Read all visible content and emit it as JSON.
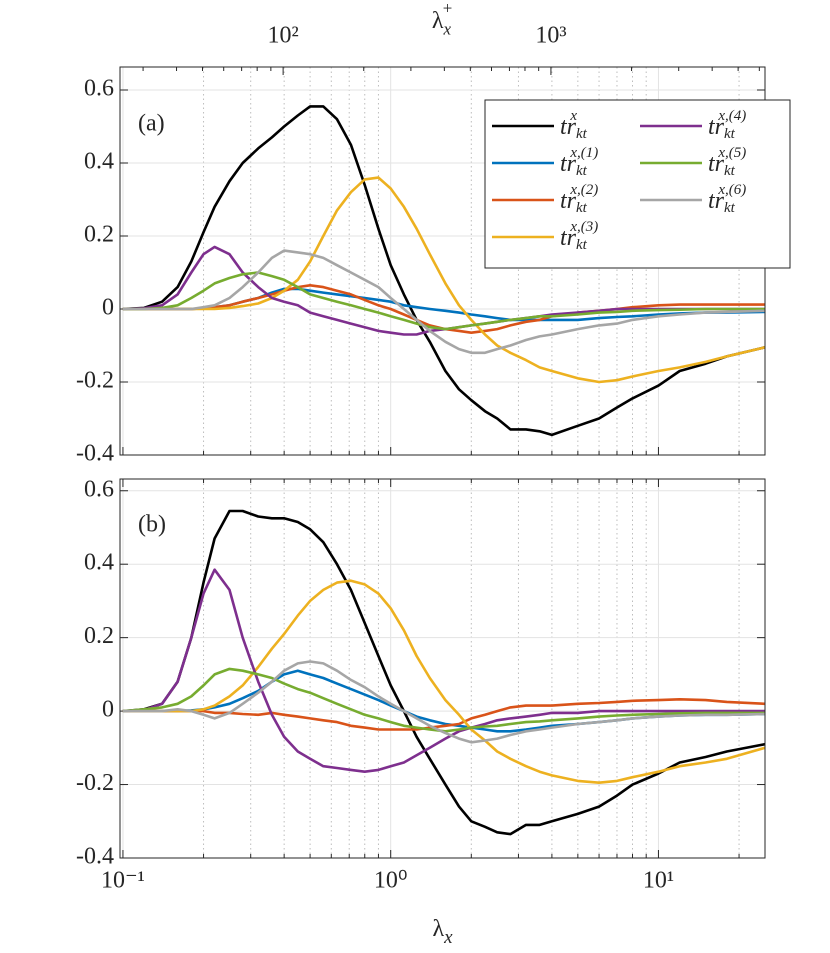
{
  "chart_data": [
    {
      "type": "line",
      "panel_label": "(a)",
      "log_x": true,
      "grid": true,
      "x2_label": {
        "text": "λ",
        "sub": "x",
        "sup": "+"
      },
      "x2lim": [
        24.6,
        6300
      ],
      "x2ticks": [
        {
          "value": 100,
          "label": "10²"
        },
        {
          "value": 1000,
          "label": "10³"
        }
      ],
      "xlim": [
        0.0975,
        25
      ],
      "xticks": [
        0.1,
        1,
        10
      ],
      "ylim": [
        -0.4,
        0.663
      ],
      "yticks": [
        0.6,
        0.4,
        0.2,
        0,
        -0.2,
        -0.4
      ],
      "x": [
        0.1,
        0.12,
        0.14,
        0.16,
        0.18,
        0.2,
        0.22,
        0.25,
        0.28,
        0.32,
        0.36,
        0.4,
        0.45,
        0.5,
        0.56,
        0.63,
        0.71,
        0.8,
        0.9,
        1.0,
        1.12,
        1.25,
        1.4,
        1.6,
        1.8,
        2.0,
        2.25,
        2.5,
        2.8,
        3.2,
        3.6,
        4.0,
        5,
        6,
        7,
        8,
        10,
        12,
        15,
        18,
        25
      ],
      "series": [
        {
          "name": "tr",
          "sub": "kt",
          "sup": "x",
          "color": "#000000",
          "values": [
            0,
            0.003,
            0.02,
            0.06,
            0.13,
            0.21,
            0.28,
            0.35,
            0.4,
            0.44,
            0.47,
            0.5,
            0.53,
            0.555,
            0.555,
            0.52,
            0.45,
            0.34,
            0.22,
            0.12,
            0.04,
            -0.03,
            -0.09,
            -0.17,
            -0.22,
            -0.25,
            -0.28,
            -0.3,
            -0.33,
            -0.33,
            -0.335,
            -0.345,
            -0.32,
            -0.3,
            -0.27,
            -0.245,
            -0.21,
            -0.17,
            -0.15,
            -0.13,
            -0.105
          ]
        },
        {
          "name": "tr",
          "sub": "kt",
          "sup": "x,(1)",
          "color": "#0072bd",
          "values": [
            0,
            0,
            0,
            0,
            0,
            0.002,
            0.005,
            0.01,
            0.02,
            0.03,
            0.045,
            0.055,
            0.055,
            0.05,
            0.045,
            0.04,
            0.035,
            0.03,
            0.025,
            0.02,
            0.01,
            0.005,
            0,
            -0.005,
            -0.01,
            -0.015,
            -0.02,
            -0.025,
            -0.03,
            -0.03,
            -0.03,
            -0.03,
            -0.03,
            -0.025,
            -0.022,
            -0.02,
            -0.015,
            -0.012,
            -0.01,
            -0.01,
            -0.008
          ]
        },
        {
          "name": "tr",
          "sub": "kt",
          "sup": "x,(2)",
          "color": "#d95319",
          "values": [
            0,
            0,
            0,
            0,
            0,
            0.002,
            0.005,
            0.01,
            0.02,
            0.03,
            0.04,
            0.05,
            0.06,
            0.065,
            0.06,
            0.05,
            0.04,
            0.025,
            0.01,
            0,
            -0.015,
            -0.03,
            -0.045,
            -0.055,
            -0.06,
            -0.065,
            -0.06,
            -0.055,
            -0.045,
            -0.035,
            -0.03,
            -0.02,
            -0.01,
            -0.005,
            0,
            0.005,
            0.01,
            0.012,
            0.012,
            0.012,
            0.012
          ]
        },
        {
          "name": "tr",
          "sub": "kt",
          "sup": "x,(3)",
          "color": "#edb120",
          "values": [
            0,
            0,
            0,
            0,
            0,
            0,
            0,
            0.003,
            0.008,
            0.015,
            0.03,
            0.05,
            0.08,
            0.13,
            0.2,
            0.27,
            0.32,
            0.355,
            0.36,
            0.33,
            0.28,
            0.22,
            0.15,
            0.07,
            0.01,
            -0.03,
            -0.07,
            -0.1,
            -0.12,
            -0.14,
            -0.16,
            -0.17,
            -0.19,
            -0.2,
            -0.195,
            -0.185,
            -0.17,
            -0.16,
            -0.145,
            -0.13,
            -0.105
          ]
        },
        {
          "name": "tr",
          "sub": "kt",
          "sup": "x,(4)",
          "color": "#7e2f8e",
          "values": [
            0,
            0.002,
            0.01,
            0.04,
            0.1,
            0.15,
            0.17,
            0.15,
            0.1,
            0.06,
            0.03,
            0.02,
            0.01,
            -0.01,
            -0.02,
            -0.03,
            -0.04,
            -0.05,
            -0.06,
            -0.065,
            -0.07,
            -0.07,
            -0.06,
            -0.055,
            -0.05,
            -0.045,
            -0.04,
            -0.035,
            -0.03,
            -0.025,
            -0.02,
            -0.015,
            -0.01,
            -0.005,
            0,
            0,
            0,
            0,
            0,
            0,
            0
          ]
        },
        {
          "name": "tr",
          "sub": "kt",
          "sup": "x,(5)",
          "color": "#77ac30",
          "values": [
            0,
            0,
            0.003,
            0.01,
            0.03,
            0.05,
            0.07,
            0.085,
            0.095,
            0.1,
            0.09,
            0.08,
            0.06,
            0.04,
            0.03,
            0.02,
            0.01,
            0,
            -0.01,
            -0.02,
            -0.03,
            -0.04,
            -0.05,
            -0.055,
            -0.05,
            -0.045,
            -0.04,
            -0.035,
            -0.03,
            -0.025,
            -0.02,
            -0.02,
            -0.015,
            -0.01,
            -0.008,
            -0.005,
            -0.003,
            -0.002,
            0,
            0,
            0
          ]
        },
        {
          "name": "tr",
          "sub": "kt",
          "sup": "x,(6)",
          "color": "#a6a6a6",
          "values": [
            0,
            0,
            0,
            0,
            0,
            0.005,
            0.01,
            0.03,
            0.06,
            0.1,
            0.14,
            0.16,
            0.155,
            0.15,
            0.14,
            0.12,
            0.1,
            0.08,
            0.06,
            0.03,
            0,
            -0.03,
            -0.06,
            -0.09,
            -0.11,
            -0.12,
            -0.12,
            -0.11,
            -0.1,
            -0.085,
            -0.075,
            -0.07,
            -0.055,
            -0.045,
            -0.04,
            -0.03,
            -0.02,
            -0.015,
            -0.01,
            -0.008,
            -0.005
          ]
        }
      ]
    },
    {
      "type": "line",
      "panel_label": "(b)",
      "log_x": true,
      "grid": true,
      "x_label": {
        "text": "λ",
        "sub": "x"
      },
      "xlim": [
        0.0975,
        25
      ],
      "xticks": [
        {
          "value": 0.1,
          "label": "10⁻¹"
        },
        {
          "value": 1,
          "label": "10⁰"
        },
        {
          "value": 10,
          "label": "10¹"
        }
      ],
      "ylim": [
        -0.4,
        0.632
      ],
      "yticks": [
        0.6,
        0.4,
        0.2,
        0,
        -0.2,
        -0.4
      ],
      "x": [
        0.1,
        0.12,
        0.14,
        0.16,
        0.18,
        0.2,
        0.22,
        0.25,
        0.28,
        0.32,
        0.36,
        0.4,
        0.45,
        0.5,
        0.56,
        0.63,
        0.71,
        0.8,
        0.9,
        1.0,
        1.12,
        1.25,
        1.4,
        1.6,
        1.8,
        2.0,
        2.25,
        2.5,
        2.8,
        3.2,
        3.6,
        4.0,
        5,
        6,
        7,
        8,
        10,
        12,
        15,
        18,
        25
      ],
      "series": [
        {
          "color": "#000000",
          "values": [
            0,
            0.005,
            0.02,
            0.08,
            0.2,
            0.35,
            0.47,
            0.545,
            0.545,
            0.53,
            0.525,
            0.525,
            0.515,
            0.495,
            0.46,
            0.4,
            0.33,
            0.24,
            0.15,
            0.07,
            0,
            -0.07,
            -0.13,
            -0.2,
            -0.26,
            -0.3,
            -0.315,
            -0.33,
            -0.335,
            -0.31,
            -0.31,
            -0.3,
            -0.28,
            -0.26,
            -0.23,
            -0.2,
            -0.17,
            -0.14,
            -0.125,
            -0.11,
            -0.09
          ]
        },
        {
          "color": "#0072bd",
          "values": [
            0,
            0,
            0,
            0,
            0.002,
            0.005,
            0.01,
            0.02,
            0.035,
            0.055,
            0.08,
            0.1,
            0.11,
            0.1,
            0.09,
            0.075,
            0.06,
            0.045,
            0.03,
            0.015,
            0,
            -0.015,
            -0.025,
            -0.035,
            -0.04,
            -0.045,
            -0.05,
            -0.055,
            -0.055,
            -0.05,
            -0.045,
            -0.04,
            -0.035,
            -0.03,
            -0.025,
            -0.02,
            -0.015,
            -0.012,
            -0.01,
            -0.01,
            -0.008
          ]
        },
        {
          "color": "#d95319",
          "values": [
            0,
            0,
            0,
            0,
            0,
            0,
            -0.005,
            -0.005,
            -0.008,
            -0.01,
            -0.005,
            -0.01,
            -0.015,
            -0.02,
            -0.025,
            -0.03,
            -0.04,
            -0.045,
            -0.05,
            -0.05,
            -0.05,
            -0.05,
            -0.045,
            -0.04,
            -0.035,
            -0.02,
            -0.01,
            0,
            0.01,
            0.015,
            0.015,
            0.015,
            0.02,
            0.022,
            0.025,
            0.028,
            0.03,
            0.032,
            0.03,
            0.025,
            0.02
          ]
        },
        {
          "color": "#edb120",
          "values": [
            0,
            0,
            0,
            0,
            0,
            0.005,
            0.015,
            0.04,
            0.07,
            0.12,
            0.17,
            0.21,
            0.26,
            0.3,
            0.33,
            0.35,
            0.355,
            0.345,
            0.32,
            0.28,
            0.22,
            0.15,
            0.09,
            0.03,
            -0.01,
            -0.05,
            -0.08,
            -0.11,
            -0.13,
            -0.15,
            -0.165,
            -0.175,
            -0.19,
            -0.195,
            -0.19,
            -0.18,
            -0.165,
            -0.15,
            -0.14,
            -0.13,
            -0.1
          ]
        },
        {
          "color": "#7e2f8e",
          "values": [
            0,
            0.003,
            0.02,
            0.08,
            0.2,
            0.32,
            0.385,
            0.33,
            0.2,
            0.08,
            -0.01,
            -0.07,
            -0.11,
            -0.13,
            -0.15,
            -0.155,
            -0.16,
            -0.165,
            -0.16,
            -0.15,
            -0.14,
            -0.12,
            -0.1,
            -0.075,
            -0.055,
            -0.045,
            -0.035,
            -0.025,
            -0.02,
            -0.015,
            -0.01,
            -0.005,
            -0.005,
            0,
            0,
            0,
            0,
            0,
            0,
            0,
            0
          ]
        },
        {
          "color": "#77ac30",
          "values": [
            0,
            0.005,
            0.01,
            0.02,
            0.04,
            0.07,
            0.1,
            0.115,
            0.11,
            0.1,
            0.09,
            0.075,
            0.06,
            0.05,
            0.035,
            0.02,
            0.005,
            -0.01,
            -0.02,
            -0.03,
            -0.04,
            -0.045,
            -0.05,
            -0.055,
            -0.05,
            -0.045,
            -0.042,
            -0.04,
            -0.035,
            -0.03,
            -0.028,
            -0.025,
            -0.02,
            -0.015,
            -0.012,
            -0.01,
            -0.008,
            -0.006,
            -0.005,
            -0.005,
            -0.005
          ]
        },
        {
          "color": "#a6a6a6",
          "values": [
            0,
            0,
            0,
            0.005,
            0,
            -0.01,
            -0.02,
            -0.005,
            0.02,
            0.05,
            0.08,
            0.11,
            0.13,
            0.135,
            0.13,
            0.11,
            0.085,
            0.065,
            0.04,
            0.02,
            0,
            -0.02,
            -0.04,
            -0.06,
            -0.075,
            -0.085,
            -0.08,
            -0.075,
            -0.065,
            -0.055,
            -0.05,
            -0.045,
            -0.035,
            -0.03,
            -0.025,
            -0.02,
            -0.015,
            -0.012,
            -0.01,
            -0.01,
            -0.008
          ]
        }
      ]
    }
  ]
}
